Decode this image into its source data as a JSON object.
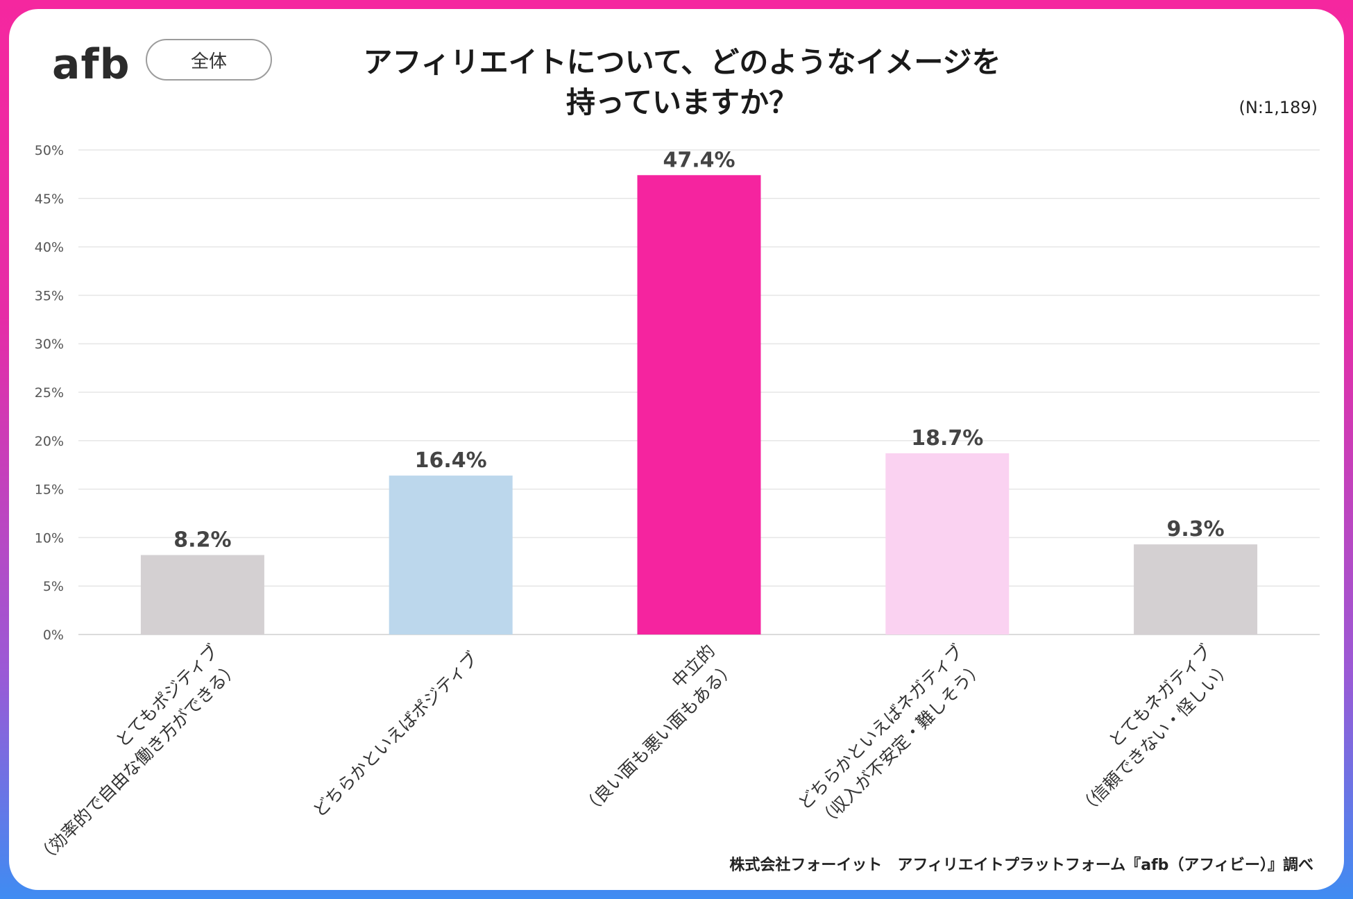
{
  "header": {
    "logo_text": "afb",
    "scope_pill": "全体",
    "title_line1": "アフィリエイトについて、どのようなイメージを",
    "title_line2": "持っていますか？",
    "sample_size": "(N:1,189)"
  },
  "footer": {
    "source": "株式会社フォーイット　アフィリエイトプラットフォーム『afb（アフィビー）』調べ"
  },
  "colors": {
    "highlight": "#f5249f",
    "grey": "#d4d0d2",
    "light_blue": "#bcd7ec",
    "light_pink": "#fad2f1"
  },
  "chart_data": {
    "type": "bar",
    "title": "アフィリエイトについて、どのようなイメージを持っていますか？",
    "categories": [
      [
        "とてもポジティブ",
        "（効率的で自由な働き方ができる）"
      ],
      [
        "どちらかといえばポジティブ"
      ],
      [
        "中立的",
        "（良い面も悪い面もある）"
      ],
      [
        "どちらかといえばネガティブ",
        "（収入が不安定・難しそう）"
      ],
      [
        "とてもネガティブ",
        "（信頼できない・怪しい）"
      ]
    ],
    "values": [
      8.2,
      16.4,
      47.4,
      18.7,
      9.3
    ],
    "value_labels": [
      "8.2%",
      "16.4%",
      "47.4%",
      "18.7%",
      "9.3%"
    ],
    "bar_colors": [
      "#d4d0d2",
      "#bcd7ec",
      "#f5249f",
      "#fad2f1",
      "#d4d0d2"
    ],
    "label_colors": [
      "#444444",
      "#444444",
      "#f5249f",
      "#444444",
      "#444444"
    ],
    "yticks": [
      0,
      5,
      10,
      15,
      20,
      25,
      30,
      35,
      40,
      45,
      50
    ],
    "ytick_labels": [
      "0%",
      "5%",
      "10%",
      "15%",
      "20%",
      "25%",
      "30%",
      "35%",
      "40%",
      "45%",
      "50%"
    ],
    "ylim": [
      0,
      50
    ],
    "grid": true,
    "xlabel": "",
    "ylabel": ""
  }
}
